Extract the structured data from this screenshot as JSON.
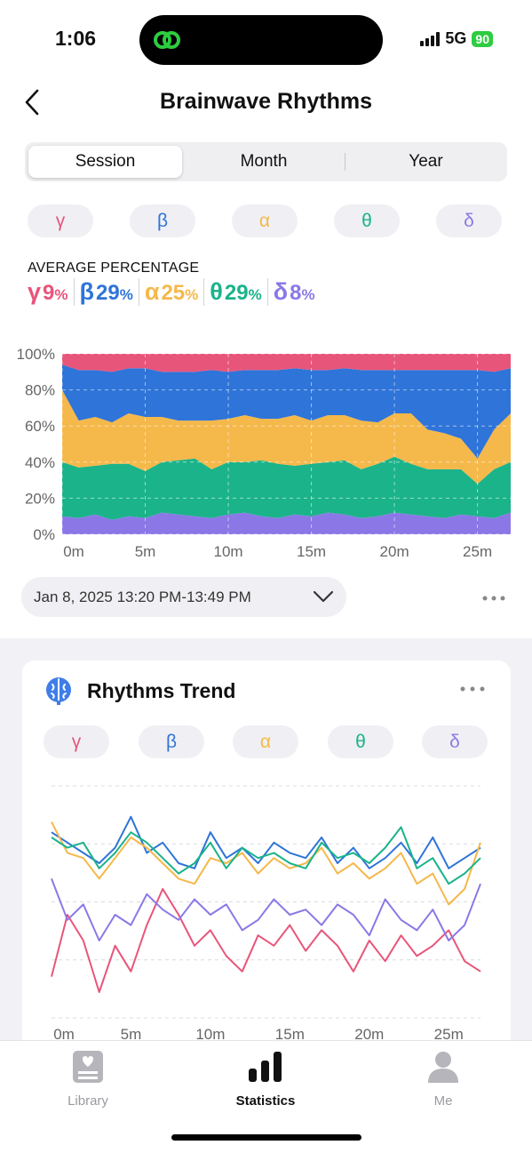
{
  "status": {
    "time": "1:06",
    "network": "5G",
    "battery": "90"
  },
  "header": {
    "title": "Brainwave Rhythms"
  },
  "segments": [
    "Session",
    "Month",
    "Year"
  ],
  "bands": [
    {
      "symbol": "γ",
      "color": "#e8557a"
    },
    {
      "symbol": "β",
      "color": "#2f74d8"
    },
    {
      "symbol": "α",
      "color": "#f5b84a"
    },
    {
      "symbol": "θ",
      "color": "#1bb38a"
    },
    {
      "symbol": "δ",
      "color": "#8b78e6"
    }
  ],
  "average": {
    "label": "AVERAGE PERCENTAGE",
    "items": [
      {
        "symbol": "γ",
        "value": "9",
        "unit": "%"
      },
      {
        "symbol": "β",
        "value": "29",
        "unit": "%"
      },
      {
        "symbol": "α",
        "value": "25",
        "unit": "%"
      },
      {
        "symbol": "θ",
        "value": "29",
        "unit": "%"
      },
      {
        "symbol": "δ",
        "value": "8",
        "unit": "%"
      }
    ]
  },
  "session_picker": {
    "label": "Jan 8, 2025 13:20 PM-13:49 PM"
  },
  "trend_card": {
    "title": "Rhythms Trend"
  },
  "tabs": [
    {
      "label": "Library",
      "icon": "library-icon",
      "active": false
    },
    {
      "label": "Statistics",
      "icon": "statistics-icon",
      "active": true
    },
    {
      "label": "Me",
      "icon": "person-icon",
      "active": false
    }
  ],
  "chart_data": [
    {
      "type": "area",
      "stacked": true,
      "x_label_ticks": [
        "0m",
        "5m",
        "10m",
        "15m",
        "20m",
        "25m"
      ],
      "y_ticks": [
        "0%",
        "20%",
        "40%",
        "60%",
        "80%",
        "100%"
      ],
      "ylim": [
        0,
        100
      ],
      "xlim": [
        0,
        27
      ],
      "x": [
        0,
        1,
        2,
        3,
        4,
        5,
        6,
        7,
        8,
        9,
        10,
        11,
        12,
        13,
        14,
        15,
        16,
        17,
        18,
        19,
        20,
        21,
        22,
        23,
        24,
        25,
        26,
        27
      ],
      "series": [
        {
          "band": "δ",
          "color": "#8b78e6",
          "values": [
            10,
            9,
            11,
            8,
            10,
            9,
            12,
            11,
            10,
            9,
            11,
            12,
            10,
            9,
            11,
            10,
            12,
            11,
            9,
            10,
            12,
            11,
            10,
            9,
            11,
            10,
            9,
            12
          ]
        },
        {
          "band": "θ",
          "color": "#1bb38a",
          "values": [
            30,
            28,
            27,
            31,
            29,
            26,
            28,
            30,
            32,
            27,
            29,
            28,
            31,
            30,
            27,
            29,
            28,
            30,
            27,
            29,
            31,
            28,
            26,
            27,
            25,
            18,
            27,
            28
          ]
        },
        {
          "band": "α",
          "color": "#f5b84a",
          "values": [
            40,
            26,
            27,
            23,
            28,
            30,
            25,
            22,
            21,
            27,
            24,
            26,
            23,
            25,
            28,
            24,
            26,
            25,
            27,
            23,
            24,
            28,
            22,
            20,
            17,
            14,
            22,
            27
          ]
        },
        {
          "band": "β",
          "color": "#2f74d8",
          "values": [
            14,
            28,
            26,
            28,
            25,
            27,
            25,
            27,
            27,
            28,
            26,
            25,
            27,
            27,
            26,
            28,
            25,
            26,
            28,
            29,
            24,
            24,
            33,
            35,
            38,
            49,
            32,
            25
          ]
        },
        {
          "band": "γ",
          "color": "#e8557a",
          "values": [
            6,
            9,
            9,
            10,
            8,
            8,
            10,
            10,
            10,
            9,
            10,
            9,
            9,
            9,
            8,
            9,
            9,
            8,
            9,
            9,
            9,
            9,
            9,
            9,
            9,
            9,
            10,
            8
          ]
        }
      ]
    },
    {
      "type": "line",
      "x_label_ticks": [
        "0m",
        "5m",
        "10m",
        "15m",
        "20m",
        "25m"
      ],
      "xlim": [
        0,
        27
      ],
      "x": [
        0,
        1,
        2,
        3,
        4,
        5,
        6,
        7,
        8,
        9,
        10,
        11,
        12,
        13,
        14,
        15,
        16,
        17,
        18,
        19,
        20,
        21,
        22,
        23,
        24,
        25,
        26,
        27
      ],
      "series": [
        {
          "band": "γ",
          "color": "#e8557a",
          "values": [
            8,
            20,
            15,
            5,
            14,
            9,
            18,
            25,
            20,
            14,
            17,
            12,
            9,
            16,
            14,
            18,
            13,
            17,
            14,
            9,
            15,
            11,
            16,
            12,
            14,
            17,
            11,
            9
          ]
        },
        {
          "band": "β",
          "color": "#2f74d8",
          "values": [
            36,
            34,
            32,
            30,
            33,
            39,
            32,
            34,
            30,
            29,
            36,
            31,
            33,
            30,
            34,
            32,
            31,
            35,
            30,
            33,
            29,
            31,
            34,
            30,
            35,
            29,
            31,
            33
          ]
        },
        {
          "band": "α",
          "color": "#f5b84a",
          "values": [
            38,
            32,
            31,
            27,
            31,
            35,
            33,
            30,
            27,
            26,
            31,
            30,
            32,
            28,
            31,
            29,
            30,
            33,
            28,
            30,
            27,
            29,
            32,
            26,
            28,
            22,
            25,
            34
          ]
        },
        {
          "band": "θ",
          "color": "#1bb38a",
          "values": [
            35,
            33,
            34,
            29,
            32,
            36,
            34,
            31,
            28,
            30,
            34,
            29,
            33,
            31,
            32,
            30,
            29,
            34,
            31,
            32,
            30,
            33,
            37,
            29,
            31,
            26,
            28,
            31
          ]
        },
        {
          "band": "δ",
          "color": "#8b78e6",
          "values": [
            27,
            19,
            22,
            15,
            20,
            18,
            24,
            21,
            19,
            23,
            20,
            22,
            17,
            19,
            23,
            20,
            21,
            18,
            22,
            20,
            16,
            23,
            19,
            17,
            21,
            15,
            18,
            26
          ]
        }
      ]
    }
  ]
}
